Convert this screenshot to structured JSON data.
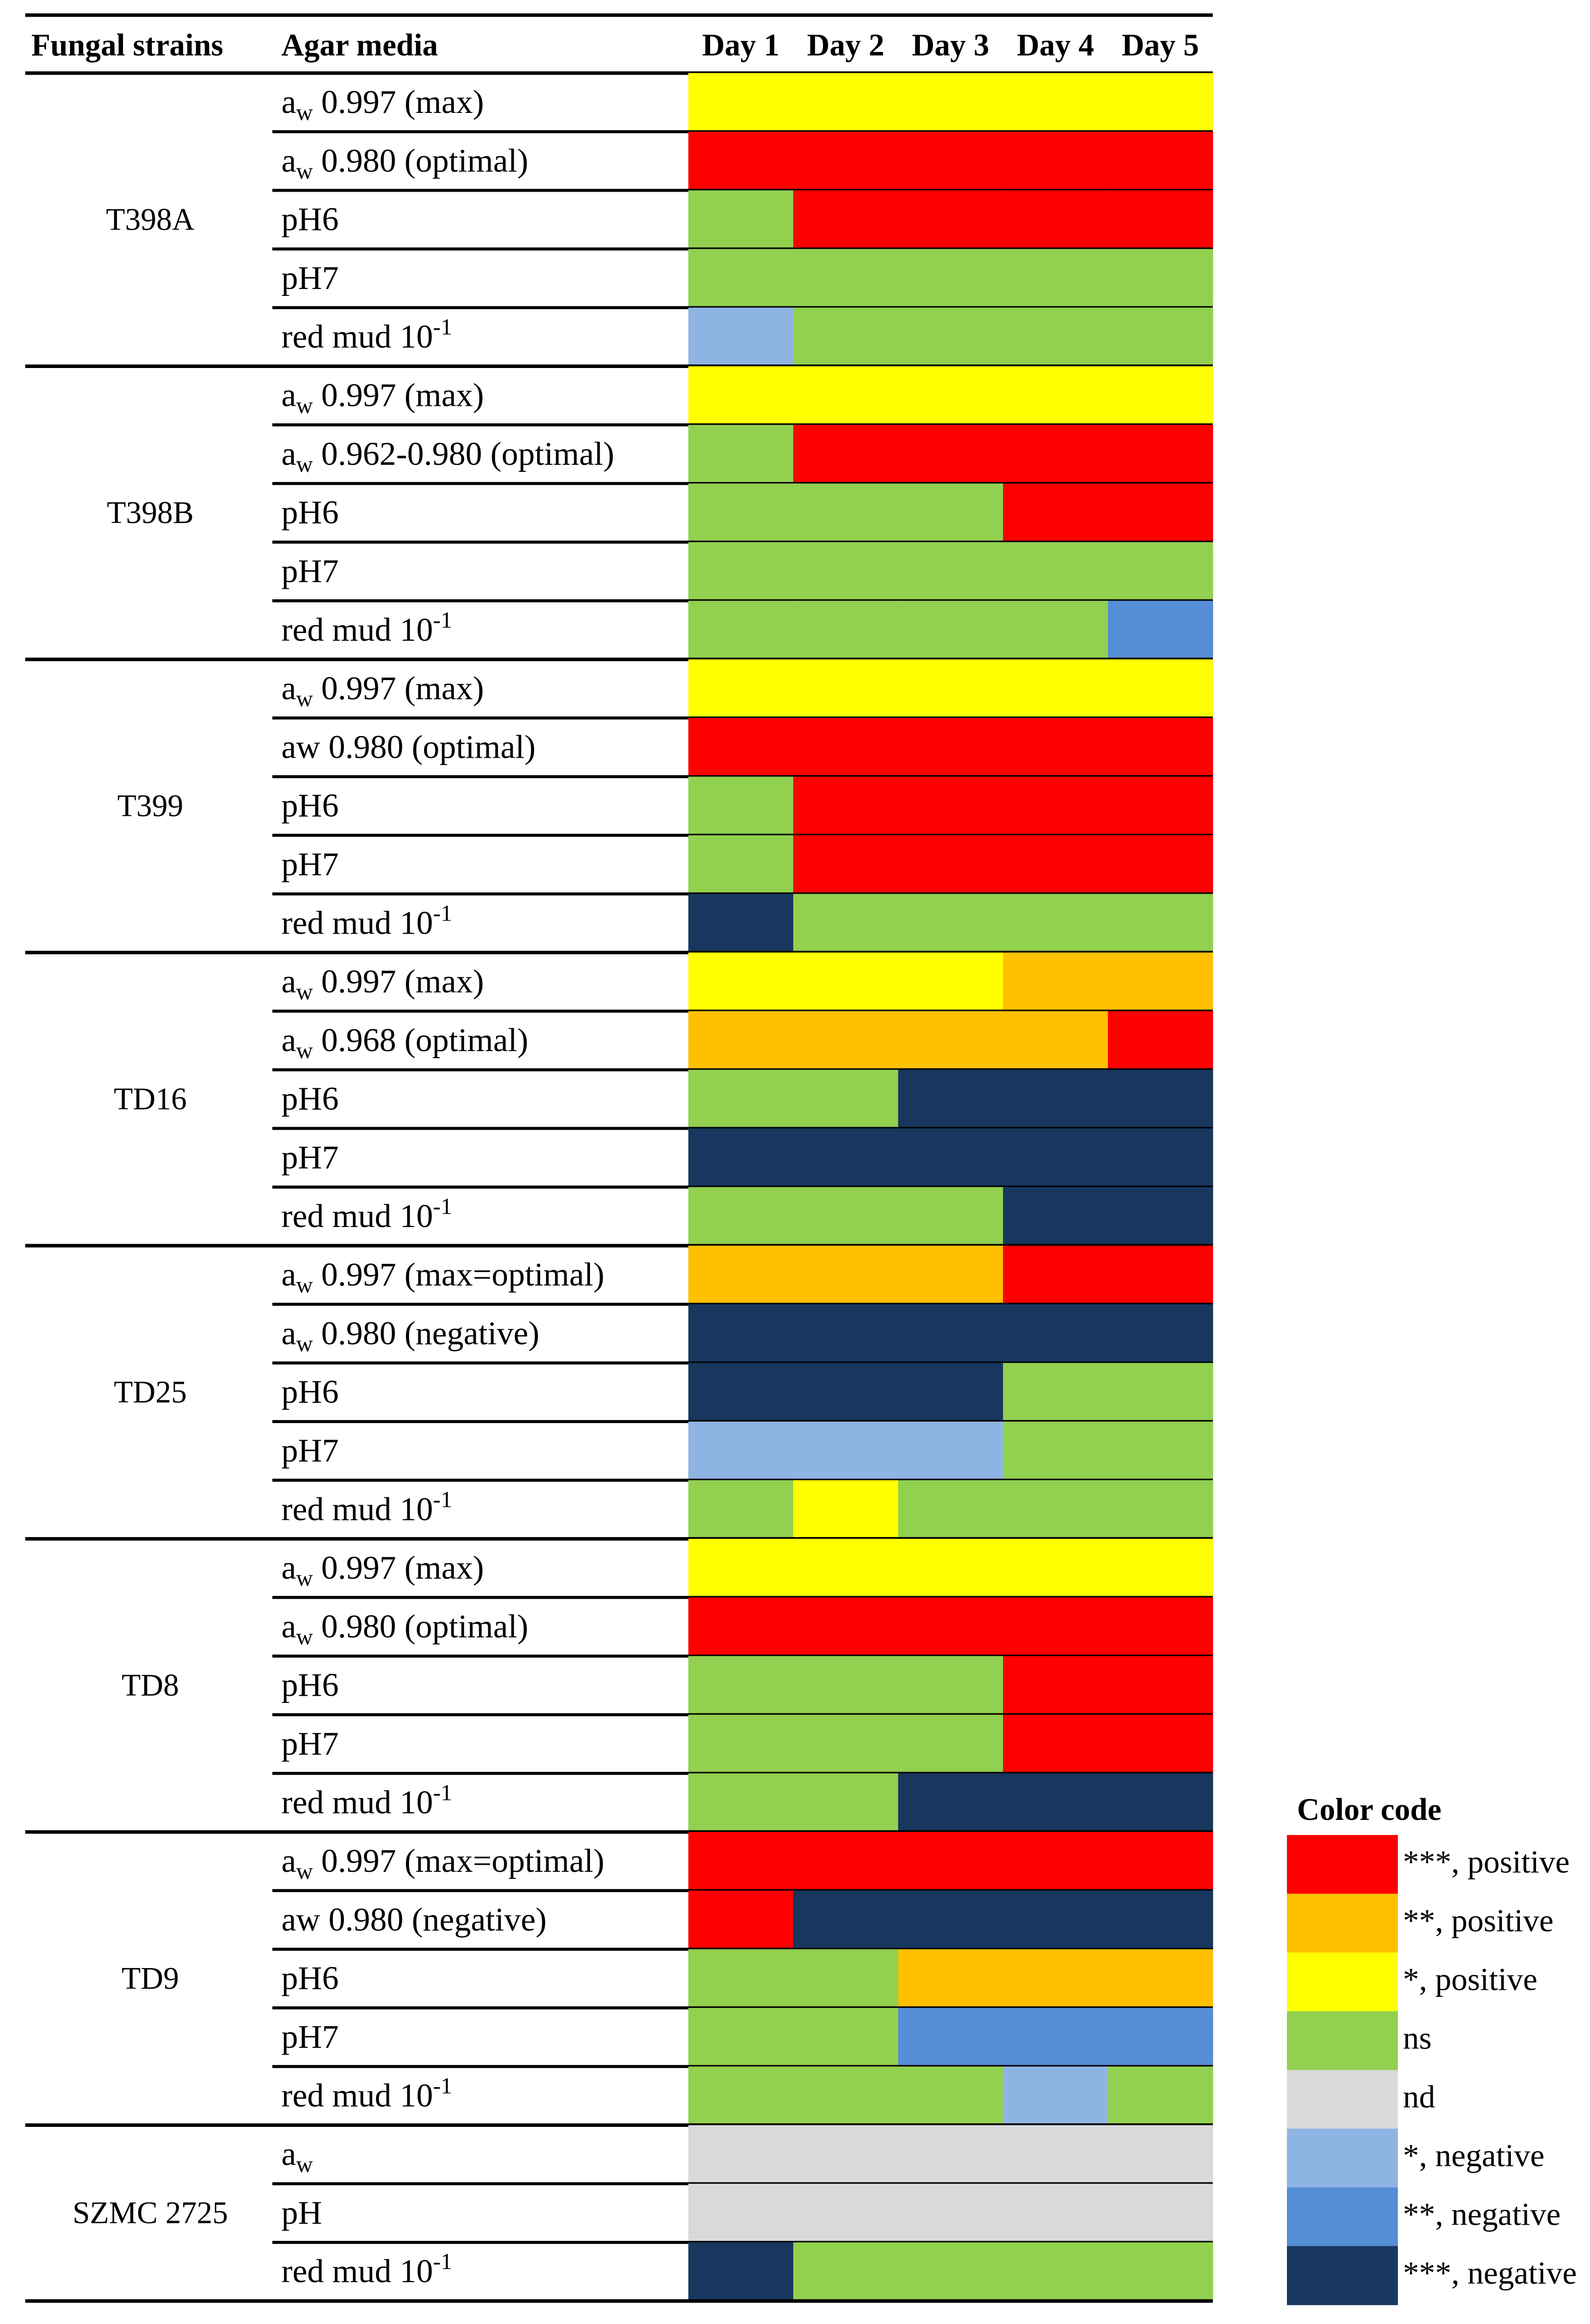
{
  "chart_data": {
    "type": "heatmap",
    "headers": {
      "strain": "Fungal strains",
      "media": "Agar media",
      "days": [
        "Day 1",
        "Day 2",
        "Day 3",
        "Day 4",
        "Day 5"
      ]
    },
    "color_code": {
      "title": "Color code",
      "entries": [
        {
          "key": "pos3",
          "label": "***, positive",
          "color": "#ff0000"
        },
        {
          "key": "pos2",
          "label": "**, positive",
          "color": "#ffc000"
        },
        {
          "key": "pos1",
          "label": "*, positive",
          "color": "#ffff00"
        },
        {
          "key": "ns",
          "label": "ns",
          "color": "#92d050"
        },
        {
          "key": "nd",
          "label": "nd",
          "color": "#d9d9d9"
        },
        {
          "key": "neg1",
          "label": "*, negative",
          "color": "#8eb4e3"
        },
        {
          "key": "neg2",
          "label": "**, negative",
          "color": "#558ed5"
        },
        {
          "key": "neg3",
          "label": "***, negative",
          "color": "#17375e"
        }
      ]
    },
    "groups": [
      {
        "strain": "T398A",
        "rows": [
          {
            "base": "a",
            "sub": "w",
            "rest": " 0.997 (max)",
            "cells": [
              "pos1",
              "pos1",
              "pos1",
              "pos1",
              "pos1"
            ]
          },
          {
            "base": "a",
            "sub": "w",
            "rest": " 0.980 (optimal)",
            "cells": [
              "pos3",
              "pos3",
              "pos3",
              "pos3",
              "pos3"
            ]
          },
          {
            "base": "pH6",
            "cells": [
              "ns",
              "pos3",
              "pos3",
              "pos3",
              "pos3"
            ]
          },
          {
            "base": "pH7",
            "cells": [
              "ns",
              "ns",
              "ns",
              "ns",
              "ns"
            ]
          },
          {
            "base": "red mud 10",
            "sup": "-1",
            "cells": [
              "neg1",
              "ns",
              "ns",
              "ns",
              "ns"
            ]
          }
        ]
      },
      {
        "strain": "T398B",
        "rows": [
          {
            "base": "a",
            "sub": "w",
            "rest": " 0.997 (max)",
            "cells": [
              "pos1",
              "pos1",
              "pos1",
              "pos1",
              "pos1"
            ]
          },
          {
            "base": "a",
            "sub": "w",
            "rest": " 0.962-0.980 (optimal)",
            "cells": [
              "ns",
              "pos3",
              "pos3",
              "pos3",
              "pos3"
            ]
          },
          {
            "base": "pH6",
            "cells": [
              "ns",
              "ns",
              "ns",
              "pos3",
              "pos3"
            ]
          },
          {
            "base": "pH7",
            "cells": [
              "ns",
              "ns",
              "ns",
              "ns",
              "ns"
            ]
          },
          {
            "base": "red mud 10",
            "sup": "-1",
            "cells": [
              "ns",
              "ns",
              "ns",
              "ns",
              "neg2"
            ]
          }
        ]
      },
      {
        "strain": "T399",
        "rows": [
          {
            "base": "a",
            "sub": "w",
            "rest": " 0.997  (max)",
            "cells": [
              "pos1",
              "pos1",
              "pos1",
              "pos1",
              "pos1"
            ]
          },
          {
            "base": "aw 0.980 (optimal)",
            "cells": [
              "pos3",
              "pos3",
              "pos3",
              "pos3",
              "pos3"
            ]
          },
          {
            "base": "pH6",
            "cells": [
              "ns",
              "pos3",
              "pos3",
              "pos3",
              "pos3"
            ]
          },
          {
            "base": "pH7",
            "cells": [
              "ns",
              "pos3",
              "pos3",
              "pos3",
              "pos3"
            ]
          },
          {
            "base": "red mud 10",
            "sup": "-1",
            "cells": [
              "neg3",
              "ns",
              "ns",
              "ns",
              "ns"
            ]
          }
        ]
      },
      {
        "strain": "TD16",
        "rows": [
          {
            "base": "a",
            "sub": "w",
            "rest": " 0.997 (max)",
            "cells": [
              "pos1",
              "pos1",
              "pos1",
              "pos2",
              "pos2"
            ]
          },
          {
            "base": "a",
            "sub": "w",
            "rest": " 0.968 (optimal)",
            "cells": [
              "pos2",
              "pos2",
              "pos2",
              "pos2",
              "pos3"
            ]
          },
          {
            "base": "pH6",
            "cells": [
              "ns",
              "ns",
              "neg3",
              "neg3",
              "neg3"
            ]
          },
          {
            "base": "pH7",
            "cells": [
              "neg3",
              "neg3",
              "neg3",
              "neg3",
              "neg3"
            ]
          },
          {
            "base": "red mud 10",
            "sup": "-1",
            "cells": [
              "ns",
              "ns",
              "ns",
              "neg3",
              "neg3"
            ]
          }
        ]
      },
      {
        "strain": "TD25",
        "rows": [
          {
            "base": "a",
            "sub": "w",
            "rest": " 0.997 (max=optimal)",
            "cells": [
              "pos2",
              "pos2",
              "pos2",
              "pos3",
              "pos3"
            ]
          },
          {
            "base": "a",
            "sub": "w",
            "rest": " 0.980 (negative)",
            "cells": [
              "neg3",
              "neg3",
              "neg3",
              "neg3",
              "neg3"
            ]
          },
          {
            "base": "pH6",
            "cells": [
              "neg3",
              "neg3",
              "neg3",
              "ns",
              "ns"
            ]
          },
          {
            "base": "pH7",
            "cells": [
              "neg1",
              "neg1",
              "neg1",
              "ns",
              "ns"
            ]
          },
          {
            "base": "red mud 10",
            "sup": "-1",
            "cells": [
              "ns",
              "pos1",
              "ns",
              "ns",
              "ns"
            ]
          }
        ]
      },
      {
        "strain": "TD8",
        "rows": [
          {
            "base": "a",
            "sub": "w",
            "rest": " 0.997 (max)",
            "cells": [
              "pos1",
              "pos1",
              "pos1",
              "pos1",
              "pos1"
            ]
          },
          {
            "base": "a",
            "sub": "w",
            "rest": " 0.980 (optimal)",
            "cells": [
              "pos3",
              "pos3",
              "pos3",
              "pos3",
              "pos3"
            ]
          },
          {
            "base": "pH6",
            "cells": [
              "ns",
              "ns",
              "ns",
              "pos3",
              "pos3"
            ]
          },
          {
            "base": "pH7",
            "cells": [
              "ns",
              "ns",
              "ns",
              "pos3",
              "pos3"
            ]
          },
          {
            "base": "red mud 10",
            "sup": "-1",
            "cells": [
              "ns",
              "ns",
              "neg3",
              "neg3",
              "neg3"
            ]
          }
        ]
      },
      {
        "strain": "TD9",
        "rows": [
          {
            "base": "a",
            "sub": "w",
            "rest": " 0.997 (max=optimal)",
            "cells": [
              "pos3",
              "pos3",
              "pos3",
              "pos3",
              "pos3"
            ]
          },
          {
            "base": "aw 0.980 (negative)",
            "cells": [
              "pos3",
              "neg3",
              "neg3",
              "neg3",
              "neg3"
            ]
          },
          {
            "base": "pH6",
            "cells": [
              "ns",
              "ns",
              "pos2",
              "pos2",
              "pos2"
            ]
          },
          {
            "base": "pH7",
            "cells": [
              "ns",
              "ns",
              "neg2",
              "neg2",
              "neg2"
            ]
          },
          {
            "base": "red mud 10",
            "sup": "-1",
            "cells": [
              "ns",
              "ns",
              "ns",
              "neg1",
              "ns"
            ]
          }
        ]
      },
      {
        "strain": "SZMC 2725",
        "rows": [
          {
            "base": "a",
            "sub": "w",
            "rest": "",
            "cells": [
              "nd",
              "nd",
              "nd",
              "nd",
              "nd"
            ]
          },
          {
            "base": "pH",
            "cells": [
              "nd",
              "nd",
              "nd",
              "nd",
              "nd"
            ]
          },
          {
            "base": "red mud 10",
            "sup": "-1",
            "cells": [
              "neg3",
              "ns",
              "ns",
              "ns",
              "ns"
            ]
          }
        ]
      }
    ]
  }
}
